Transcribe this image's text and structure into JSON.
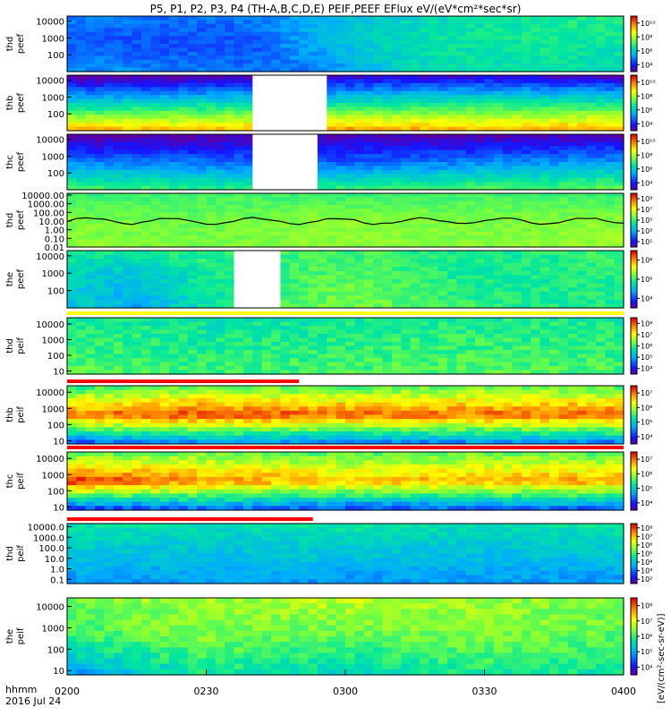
{
  "title": "P5, P1, P2, P3, P4 (TH-A,B,C,D,E) PEIF,PEEF EFlux eV/(eV*cm²*sec*sr)",
  "time_axis": {
    "label_line1": "hhmm",
    "label_line2": "2016 Jul 24",
    "ticks": [
      "0200",
      "0230",
      "0300",
      "0330",
      "0400"
    ]
  },
  "colorbar_unit": "[eV/(cm²-sec-sr-eV)]",
  "chart_data": [
    {
      "type": "heatmap",
      "probe": "thd",
      "label_1": "thd",
      "label_2": "peef",
      "y_ticks": [
        "100",
        "1000",
        "10000"
      ],
      "y_log_range": [
        1,
        4.3
      ],
      "colorbar_ticks": [
        "10⁴",
        "10⁶",
        "10⁸",
        "10¹⁰"
      ],
      "colorbar_log_range": [
        3,
        10.8
      ],
      "data_gap": null,
      "coverage_bar": null,
      "field_line": null,
      "profile": {
        "tmin": 0,
        "tmax": 120,
        "points": [
          [
            0,
            5.2,
            4.6,
            5.0
          ],
          [
            20,
            5.0,
            4.4,
            4.8
          ],
          [
            40,
            4.8,
            4.5,
            4.9
          ],
          [
            55,
            4.9,
            5.6,
            5.6
          ],
          [
            75,
            6.2,
            6.4,
            6.2
          ],
          [
            100,
            6.4,
            6.6,
            6.6
          ],
          [
            120,
            6.2,
            6.5,
            6.8
          ]
        ]
      }
    },
    {
      "type": "heatmap",
      "probe": "thb",
      "label_1": "thb",
      "label_2": "peef",
      "y_ticks": [
        "100",
        "1000",
        "10000"
      ],
      "y_log_range": [
        1,
        4.3
      ],
      "colorbar_ticks": [
        "10⁴",
        "10⁶",
        "10⁸",
        "10¹⁰"
      ],
      "colorbar_log_range": [
        3,
        10.8
      ],
      "data_gap": [
        40,
        56
      ],
      "coverage_bar": null,
      "field_line": null,
      "profile": {
        "tmin": 0,
        "tmax": 120,
        "points": [
          [
            0,
            9.4,
            6.0,
            2.8
          ],
          [
            30,
            9.2,
            6.2,
            3.0
          ],
          [
            60,
            9.6,
            6.4,
            3.3
          ],
          [
            90,
            9.3,
            6.6,
            3.5
          ],
          [
            120,
            9.5,
            6.5,
            3.2
          ]
        ]
      }
    },
    {
      "type": "heatmap",
      "probe": "thc",
      "label_1": "thc",
      "label_2": "peef",
      "y_ticks": [
        "100",
        "1000",
        "10000"
      ],
      "y_log_range": [
        1,
        4.3
      ],
      "colorbar_ticks": [
        "10⁴",
        "10⁶",
        "10⁸",
        "10¹⁰"
      ],
      "colorbar_log_range": [
        3,
        10.8
      ],
      "data_gap": [
        40,
        54
      ],
      "coverage_bar": null,
      "field_line": null,
      "profile": {
        "tmin": 0,
        "tmax": 120,
        "points": [
          [
            0,
            7.2,
            5.0,
            2.8
          ],
          [
            30,
            6.8,
            4.8,
            3.0
          ],
          [
            60,
            7.0,
            4.6,
            3.2
          ],
          [
            90,
            7.2,
            5.0,
            3.0
          ],
          [
            120,
            7.4,
            5.2,
            3.2
          ]
        ]
      }
    },
    {
      "type": "heatmap",
      "probe": "thd",
      "label_1": "thd",
      "label_2": "peef",
      "y_ticks": [
        "0.01",
        "0.10",
        "1.00",
        "10.00",
        "100.00",
        "1000.00",
        "10000.00"
      ],
      "y_log_range": [
        -2,
        4.2
      ],
      "colorbar_ticks": [
        "10¹",
        "10³",
        "10⁵",
        "10⁷",
        "10⁹"
      ],
      "colorbar_log_range": [
        0,
        10
      ],
      "data_gap": null,
      "coverage_bar": null,
      "field_line": true,
      "profile": {
        "tmin": 0,
        "tmax": 120,
        "points": [
          [
            0,
            6.0,
            5.8,
            5.0
          ],
          [
            30,
            5.8,
            5.6,
            5.2
          ],
          [
            60,
            6.0,
            6.0,
            5.0
          ],
          [
            90,
            5.9,
            5.8,
            5.2
          ],
          [
            120,
            6.1,
            6.0,
            5.0
          ]
        ]
      }
    },
    {
      "type": "heatmap",
      "probe": "the",
      "label_1": "the",
      "label_2": "peef",
      "y_ticks": [
        "100",
        "1000",
        "10000"
      ],
      "y_log_range": [
        1,
        4.3
      ],
      "colorbar_ticks": [
        "10⁴",
        "10⁶",
        "10⁸"
      ],
      "colorbar_log_range": [
        3,
        9.5
      ],
      "data_gap": [
        36,
        46
      ],
      "coverage_bar": null,
      "field_line": null,
      "profile": {
        "tmin": 0,
        "tmax": 120,
        "points": [
          [
            0,
            5.4,
            5.6,
            6.0
          ],
          [
            15,
            5.0,
            5.2,
            6.0
          ],
          [
            30,
            5.8,
            6.0,
            6.2
          ],
          [
            60,
            6.8,
            6.6,
            6.4
          ],
          [
            90,
            6.2,
            6.0,
            6.0
          ],
          [
            120,
            6.0,
            6.2,
            6.4
          ]
        ]
      }
    },
    {
      "type": "heatmap",
      "probe": "thd",
      "label_1": "thd",
      "label_2": "peif",
      "y_ticks": [
        "10",
        "100",
        "1000",
        "10000"
      ],
      "y_log_range": [
        0.8,
        4.4
      ],
      "colorbar_ticks": [
        "10⁴",
        "10⁵",
        "10⁶",
        "10⁷",
        "10⁸"
      ],
      "colorbar_log_range": [
        3,
        8.5
      ],
      "data_gap": null,
      "coverage_bar": [
        0,
        120,
        "#ffff00"
      ],
      "field_line": null,
      "profile": {
        "tmin": 0,
        "tmax": 120,
        "points": [
          [
            0,
            6.0,
            5.8,
            5.6
          ],
          [
            30,
            5.8,
            5.6,
            5.4
          ],
          [
            60,
            5.9,
            5.7,
            5.5
          ],
          [
            90,
            6.0,
            5.8,
            5.6
          ],
          [
            120,
            5.9,
            5.7,
            5.5
          ]
        ]
      }
    },
    {
      "type": "heatmap",
      "probe": "thb",
      "label_1": "thb",
      "label_2": "peif",
      "y_ticks": [
        "10",
        "100",
        "1000",
        "10000"
      ],
      "y_log_range": [
        0.8,
        4.4
      ],
      "colorbar_ticks": [
        "10⁴",
        "10⁵",
        "10⁶",
        "10⁷"
      ],
      "colorbar_log_range": [
        3,
        8
      ],
      "data_gap": null,
      "coverage_bar": [
        0,
        50,
        "#ff0000"
      ],
      "field_line": null,
      "profile": {
        "tmin": 0,
        "tmax": 120,
        "points": [
          [
            0,
            3.8,
            7.4,
            5.4
          ],
          [
            30,
            4.2,
            7.6,
            5.8
          ],
          [
            60,
            4.0,
            7.5,
            5.6
          ],
          [
            90,
            4.2,
            7.4,
            5.8
          ],
          [
            120,
            4.0,
            7.6,
            5.6
          ]
        ]
      }
    },
    {
      "type": "heatmap",
      "probe": "thc",
      "label_1": "thc",
      "label_2": "peif",
      "y_ticks": [
        "10",
        "100",
        "1000",
        "10000"
      ],
      "y_log_range": [
        0.8,
        4.4
      ],
      "colorbar_ticks": [
        "10⁴",
        "10⁵",
        "10⁶",
        "10⁷"
      ],
      "colorbar_log_range": [
        3,
        8
      ],
      "data_gap": null,
      "coverage_bar": [
        0,
        120,
        "#ff0000"
      ],
      "field_line": null,
      "profile": {
        "tmin": 0,
        "tmax": 120,
        "points": [
          [
            0,
            3.6,
            7.8,
            5.6
          ],
          [
            30,
            4.0,
            7.2,
            5.8
          ],
          [
            60,
            3.8,
            7.0,
            5.6
          ],
          [
            90,
            4.0,
            7.0,
            5.8
          ],
          [
            120,
            3.8,
            7.2,
            5.6
          ]
        ]
      }
    },
    {
      "type": "heatmap",
      "probe": "thd",
      "label_1": "thd",
      "label_2": "peif",
      "y_ticks": [
        "0.1",
        "1.0",
        "10.0",
        "100.0",
        "1000.0",
        "10000.0"
      ],
      "y_log_range": [
        -1.4,
        4.3
      ],
      "colorbar_ticks": [
        "10²",
        "10³",
        "10⁴",
        "10⁵",
        "10⁶",
        "10⁷",
        "10⁸"
      ],
      "colorbar_log_range": [
        1,
        8.5
      ],
      "data_gap": null,
      "coverage_bar": [
        0,
        53,
        "#ff0000"
      ],
      "field_line": null,
      "profile": {
        "tmin": 0,
        "tmax": 120,
        "points": [
          [
            0,
            3.0,
            3.8,
            4.4
          ],
          [
            30,
            3.2,
            3.6,
            4.2
          ],
          [
            60,
            3.0,
            3.8,
            4.4
          ],
          [
            90,
            3.2,
            3.6,
            4.2
          ],
          [
            120,
            3.0,
            3.8,
            4.4
          ]
        ]
      }
    },
    {
      "type": "heatmap",
      "probe": "the",
      "label_1": "the",
      "label_2": "peif",
      "y_ticks": [
        "10",
        "100",
        "1000",
        "10000"
      ],
      "y_log_range": [
        0.8,
        4.4
      ],
      "colorbar_ticks": [
        "10⁴",
        "10⁵",
        "10⁶",
        "10⁷",
        "10⁸"
      ],
      "colorbar_log_range": [
        3,
        8.5
      ],
      "data_gap": null,
      "coverage_bar": null,
      "field_line": null,
      "profile": {
        "tmin": 0,
        "tmax": 120,
        "points": [
          [
            0,
            4.5,
            5.8,
            6.2
          ],
          [
            30,
            5.5,
            6.2,
            6.4
          ],
          [
            60,
            5.2,
            6.0,
            6.6
          ],
          [
            90,
            5.6,
            6.2,
            6.4
          ],
          [
            120,
            5.4,
            6.0,
            6.2
          ]
        ]
      }
    }
  ]
}
